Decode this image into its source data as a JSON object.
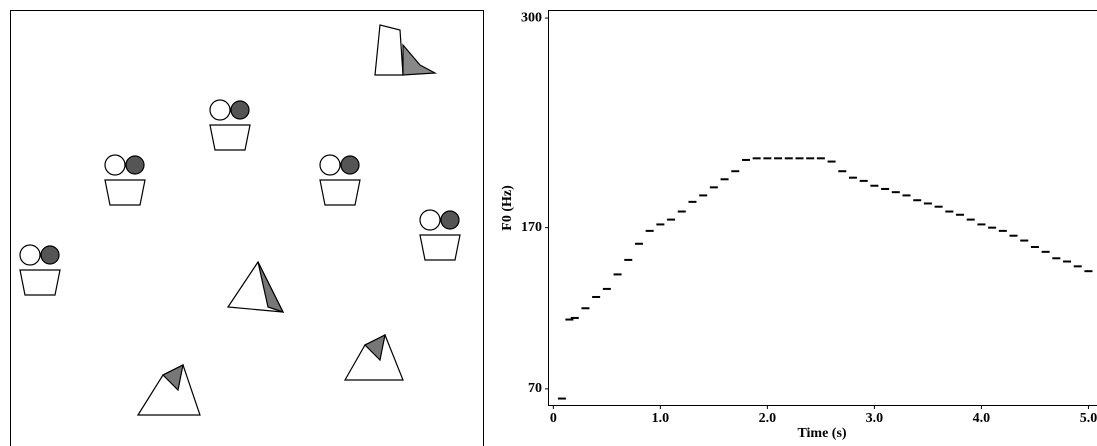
{
  "chart_data": {
    "type": "scatter",
    "x_label": "Time (s)",
    "y_label": "F0 (Hz)",
    "xlim": [
      -0.05,
      5.08
    ],
    "ylim": [
      60,
      305
    ],
    "xticks": [
      0,
      {
        "value": 1,
        "label": "1.0"
      },
      {
        "value": 2,
        "label": "2.0"
      },
      {
        "value": 3,
        "label": "3.0"
      },
      {
        "value": 4,
        "label": "4.0"
      },
      {
        "value": 5,
        "label": "5.0"
      }
    ],
    "yticks": [
      70,
      170,
      300
    ],
    "series": [
      {
        "color": "#000000",
        "x": [
          0.08,
          0.15,
          0.2,
          0.3,
          0.4,
          0.5,
          0.6,
          0.7,
          0.8,
          0.9,
          1.0,
          1.1,
          1.2,
          1.3,
          1.4,
          1.5,
          1.6,
          1.7,
          1.8,
          1.9,
          2.0,
          2.1,
          2.2,
          2.3,
          2.4,
          2.5,
          2.6,
          2.7,
          2.8,
          2.9,
          3.0,
          3.1,
          3.2,
          3.3,
          3.4,
          3.5,
          3.6,
          3.7,
          3.8,
          3.9,
          4.0,
          4.1,
          4.2,
          4.3,
          4.4,
          4.5,
          4.6,
          4.7,
          4.8,
          4.9,
          5.0
        ],
        "values": [
          64,
          113,
          114,
          120,
          127,
          132,
          141,
          150,
          160,
          168,
          172,
          175,
          180,
          186,
          190,
          195,
          200,
          205,
          212,
          213,
          213,
          213,
          213,
          213,
          213,
          213,
          211,
          205,
          201,
          199,
          196,
          194,
          192,
          190,
          187,
          185,
          183,
          180,
          178,
          175,
          172,
          170,
          168,
          165,
          162,
          158,
          155,
          151,
          149,
          146,
          143
        ]
      }
    ]
  }
}
